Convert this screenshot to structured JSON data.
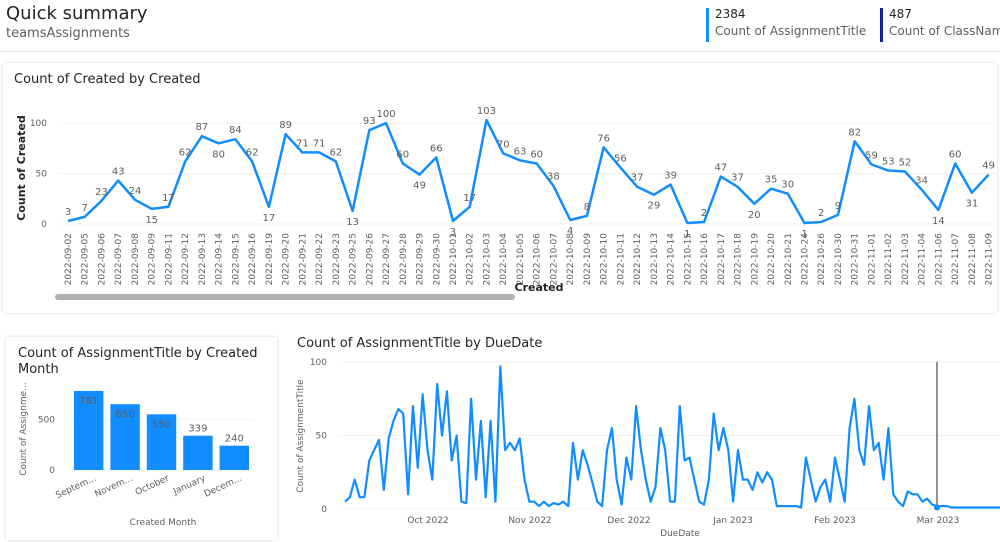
{
  "header": {
    "title": "Quick summary",
    "subtitle": "teamsAssignments",
    "kpis": [
      {
        "value": "2384",
        "label": "Count of AssignmentTitle",
        "color": "#118dff"
      },
      {
        "value": "487",
        "label": "Count of ClassName",
        "color": "#12239e"
      }
    ]
  },
  "chart_data": [
    {
      "type": "line",
      "title": "Count of Created by Created",
      "xlabel": "Created",
      "ylabel": "Count of Created",
      "ylim": [
        0,
        110
      ],
      "yticks": [
        0,
        50,
        100
      ],
      "color": "#118dff",
      "x": [
        "2022-09-02",
        "2022-09-05",
        "2022-09-06",
        "2022-09-07",
        "2022-09-08",
        "2022-09-09",
        "2022-09-11",
        "2022-09-12",
        "2022-09-13",
        "2022-09-14",
        "2022-09-15",
        "2022-09-16",
        "2022-09-19",
        "2022-09-20",
        "2022-09-21",
        "2022-09-22",
        "2022-09-23",
        "2022-09-25",
        "2022-09-26",
        "2022-09-27",
        "2022-09-28",
        "2022-09-29",
        "2022-09-30",
        "2022-10-01",
        "2022-10-02",
        "2022-10-03",
        "2022-10-04",
        "2022-10-05",
        "2022-10-06",
        "2022-10-07",
        "2022-10-08",
        "2022-10-09",
        "2022-10-10",
        "2022-10-11",
        "2022-10-12",
        "2022-10-13",
        "2022-10-14",
        "2022-10-15",
        "2022-10-16",
        "2022-10-17",
        "2022-10-18",
        "2022-10-19",
        "2022-10-20",
        "2022-10-21",
        "2022-10-24",
        "2022-10-26",
        "2022-10-30",
        "2022-10-31",
        "2022-11-01",
        "2022-11-02",
        "2022-11-03",
        "2022-11-04",
        "2022-11-06",
        "2022-11-07",
        "2022-11-08",
        "2022-11-09"
      ],
      "values": [
        3,
        7,
        23,
        43,
        24,
        15,
        17,
        62,
        87,
        80,
        84,
        62,
        17,
        89,
        71,
        71,
        62,
        13,
        93,
        100,
        60,
        49,
        66,
        3,
        17,
        103,
        70,
        63,
        60,
        38,
        4,
        8,
        76,
        56,
        37,
        29,
        39,
        1,
        2,
        47,
        37,
        20,
        35,
        30,
        1,
        2,
        9,
        82,
        59,
        53,
        52,
        34,
        14,
        60,
        31,
        49
      ],
      "scrollbar": true
    },
    {
      "type": "bar",
      "title": "Count of AssignmentTitle by Created Month",
      "xlabel": "Created Month",
      "ylabel": "Count of Assignme...",
      "categories": [
        "Septem...",
        "Novem...",
        "October",
        "January",
        "Decem..."
      ],
      "values": [
        781,
        650,
        550,
        339,
        240
      ],
      "ylim": [
        0,
        820
      ],
      "yticks": [
        0,
        500
      ],
      "color": "#118dff"
    },
    {
      "type": "line",
      "title": "Count of AssignmentTitle by DueDate",
      "xlabel": "DueDate",
      "ylabel": "Count of AssignmentTitle",
      "ylim": [
        0,
        100
      ],
      "yticks": [
        0,
        50,
        100
      ],
      "xticks": [
        "Oct 2022",
        "Nov 2022",
        "Dec 2022",
        "Jan 2023",
        "Feb 2023",
        "Mar 2023"
      ],
      "color": "#118dff",
      "values": [
        5,
        8,
        20,
        8,
        8,
        33,
        40,
        47,
        13,
        48,
        60,
        68,
        65,
        10,
        70,
        28,
        78,
        40,
        20,
        85,
        50,
        80,
        33,
        50,
        5,
        4,
        75,
        20,
        60,
        8,
        60,
        5,
        97,
        40,
        45,
        40,
        48,
        20,
        5,
        5,
        2,
        5,
        2,
        4,
        3,
        5,
        2,
        45,
        20,
        40,
        30,
        18,
        5,
        2,
        40,
        55,
        20,
        3,
        35,
        20,
        70,
        40,
        20,
        5,
        15,
        55,
        40,
        5,
        5,
        70,
        33,
        35,
        20,
        5,
        3,
        20,
        65,
        40,
        55,
        40,
        5,
        40,
        20,
        20,
        13,
        25,
        18,
        25,
        20,
        2,
        2,
        2,
        2,
        2,
        1,
        35,
        20,
        5,
        15,
        20,
        5,
        35,
        20,
        5,
        55,
        75,
        40,
        30,
        70,
        40,
        45,
        20,
        55,
        10,
        5,
        2,
        12,
        10,
        10,
        5,
        7,
        3,
        2,
        2,
        2,
        1,
        1,
        1,
        1,
        1,
        1,
        1,
        1,
        1,
        1,
        1
      ],
      "reference_line_label": "Mar 2023"
    }
  ]
}
